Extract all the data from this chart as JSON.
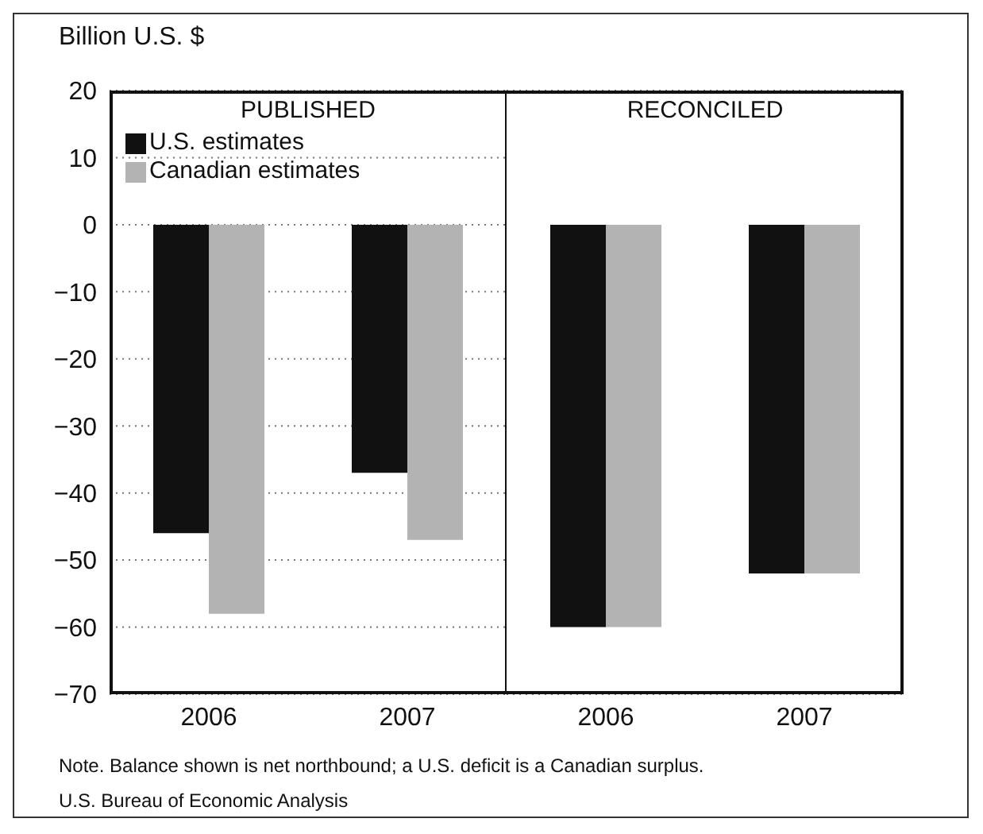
{
  "chart_data": [
    {
      "type": "bar",
      "title": "PUBLISHED",
      "ylabel": "Billion U.S. $",
      "categories": [
        "2006",
        "2007"
      ],
      "series": [
        {
          "name": "U.S. estimates",
          "color": "#111111",
          "values": [
            -46,
            -37
          ]
        },
        {
          "name": "Canadian estimates",
          "color": "#b3b3b3",
          "values": [
            -58,
            -47
          ]
        }
      ],
      "ylim": [
        -70,
        20
      ],
      "yticks": [
        -70,
        -60,
        -50,
        -40,
        -30,
        -20,
        -10,
        0,
        10,
        20
      ],
      "grid": "y",
      "legend": "top left",
      "annotations": [
        "Note. Balance shown is net northbound; a U.S. deficit is a Canadian surplus.",
        "U.S. Bureau of Economic Analysis"
      ]
    },
    {
      "type": "bar",
      "title": "RECONCILED",
      "categories": [
        "2006",
        "2007"
      ],
      "series": [
        {
          "color": "#111111",
          "values": [
            -60,
            -52
          ]
        },
        {
          "color": "#b3b3b3",
          "values": [
            -60,
            -52
          ]
        }
      ],
      "ylim": [
        -70,
        20
      ],
      "yticks": [
        -70,
        -60,
        -50,
        -40,
        -30,
        -20,
        -10,
        0,
        10,
        20
      ],
      "grid": "y",
      "tick_labels": "x"
    }
  ]
}
